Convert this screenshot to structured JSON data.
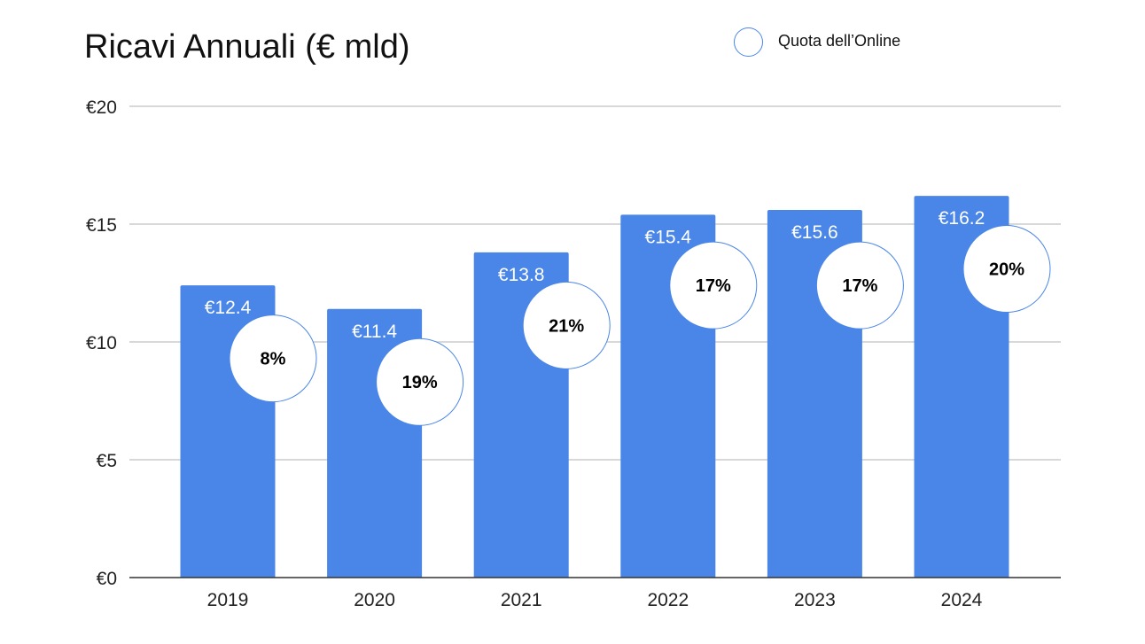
{
  "chart_data": {
    "type": "bar",
    "title": "Ricavi Annuali (€ mld)",
    "xlabel": "",
    "ylabel": "",
    "categories": [
      "2019",
      "2020",
      "2021",
      "2022",
      "2023",
      "2024"
    ],
    "values": [
      12.4,
      11.4,
      13.8,
      15.4,
      15.6,
      16.2
    ],
    "value_labels": [
      "€12.4",
      "€11.4",
      "€13.8",
      "€15.4",
      "€15.6",
      "€16.2"
    ],
    "ylim": [
      0,
      20
    ],
    "y_ticks": [
      0,
      5,
      10,
      15,
      20
    ],
    "y_tick_labels": [
      "€0",
      "€5",
      "€10",
      "€15",
      "€20"
    ],
    "grid": true,
    "bar_color": "#4a86e8",
    "overlay_series": {
      "name": "Quota dell’Online",
      "values": [
        8,
        19,
        21,
        17,
        17,
        20
      ],
      "labels": [
        "8%",
        "19%",
        "21%",
        "17%",
        "17%",
        "20%"
      ],
      "circle_y_positions": [
        9.3,
        8.3,
        10.7,
        12.4,
        12.4,
        13.1
      ]
    },
    "legend": {
      "placement": "top-right",
      "label": "Quota dell’Online"
    }
  }
}
